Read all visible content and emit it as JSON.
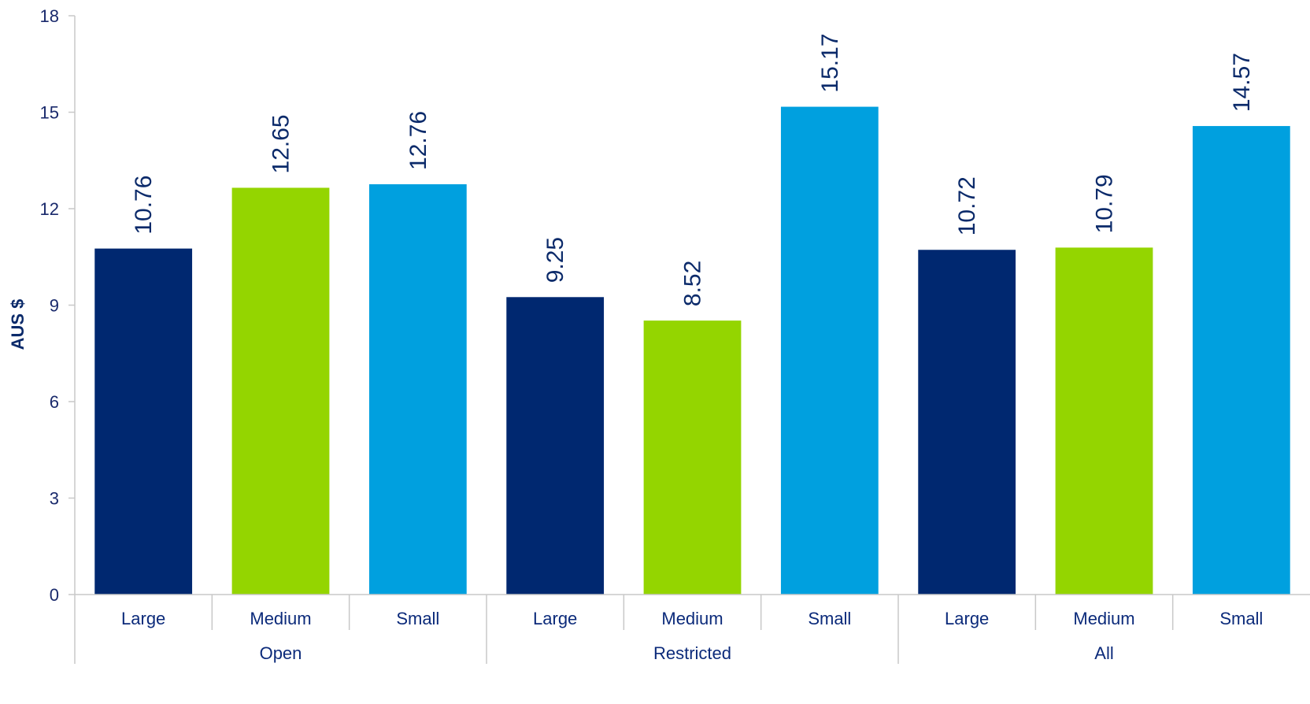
{
  "chart_data": {
    "type": "bar",
    "ylabel": "AUS $",
    "ylim": [
      0,
      18
    ],
    "yticks": [
      0,
      3,
      6,
      9,
      12,
      15,
      18
    ],
    "grid": false,
    "groups": [
      {
        "label": "Open",
        "bars": [
          {
            "category": "Large",
            "value": 10.76,
            "label": "10.76"
          },
          {
            "category": "Medium",
            "value": 12.65,
            "label": "12.65"
          },
          {
            "category": "Small",
            "value": 12.76,
            "label": "12.76"
          }
        ]
      },
      {
        "label": "Restricted",
        "bars": [
          {
            "category": "Large",
            "value": 9.25,
            "label": "9.25"
          },
          {
            "category": "Medium",
            "value": 8.52,
            "label": "8.52"
          },
          {
            "category": "Small",
            "value": 15.17,
            "label": "15.17"
          }
        ]
      },
      {
        "label": "All",
        "bars": [
          {
            "category": "Large",
            "value": 10.72,
            "label": "10.72"
          },
          {
            "category": "Medium",
            "value": 10.79,
            "label": "10.79"
          },
          {
            "category": "Small",
            "value": 14.57,
            "label": "14.57"
          }
        ]
      }
    ],
    "colors": {
      "Large": "#002870",
      "Medium": "#94d500",
      "Small": "#00a0df"
    }
  }
}
